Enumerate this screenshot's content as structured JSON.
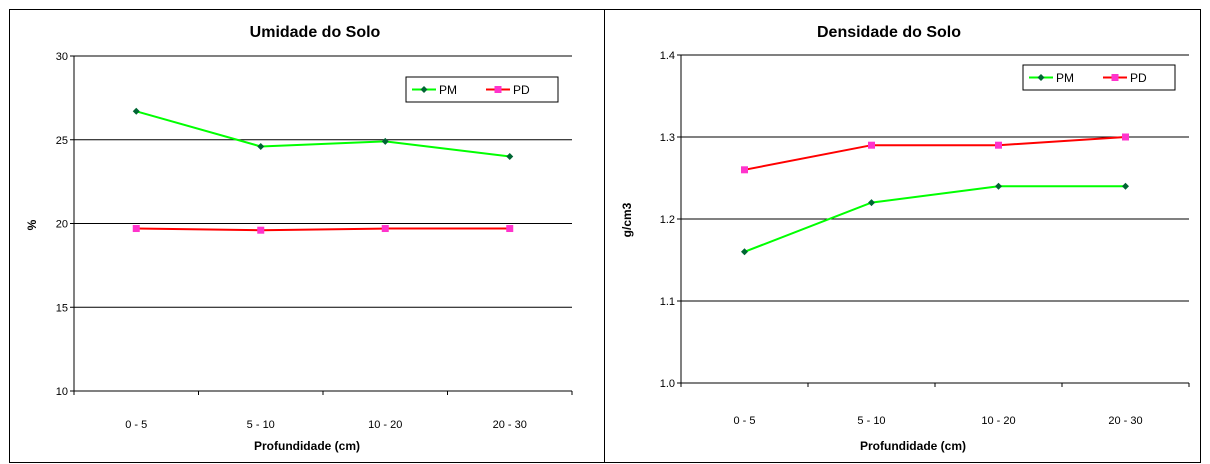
{
  "chart_data": [
    {
      "type": "line",
      "title": "Umidade do Solo",
      "xlabel": "Profundidade (cm)",
      "ylabel": "%",
      "categories": [
        "0 - 5",
        "5 - 10",
        "10 - 20",
        "20 - 30"
      ],
      "ylim": [
        10,
        30
      ],
      "yticks": [
        "10",
        "15",
        "20",
        "25",
        "30"
      ],
      "grid": true,
      "legend": "top-right",
      "series": [
        {
          "name": "PM",
          "color": "#00ff00",
          "marker_color": "#006633",
          "marker": "diamond",
          "values": [
            26.7,
            24.6,
            24.9,
            24.0
          ]
        },
        {
          "name": "PD",
          "color": "#ff0000",
          "marker_color": "#ff33cc",
          "marker": "square",
          "values": [
            19.7,
            19.6,
            19.7,
            19.7
          ]
        }
      ]
    },
    {
      "type": "line",
      "title": "Densidade do Solo",
      "xlabel": "Profundidade (cm)",
      "ylabel": "g/cm3",
      "categories": [
        "0 - 5",
        "5 - 10",
        "10 - 20",
        "20 - 30"
      ],
      "ylim": [
        1.0,
        1.4
      ],
      "yticks": [
        "1.0",
        "1.1",
        "1.2",
        "1.3",
        "1.4"
      ],
      "grid": true,
      "legend": "top-right",
      "series": [
        {
          "name": "PM",
          "color": "#00ff00",
          "marker_color": "#006633",
          "marker": "diamond",
          "values": [
            1.16,
            1.22,
            1.24,
            1.24
          ]
        },
        {
          "name": "PD",
          "color": "#ff0000",
          "marker_color": "#ff33cc",
          "marker": "square",
          "values": [
            1.26,
            1.29,
            1.29,
            1.3
          ]
        }
      ]
    }
  ]
}
